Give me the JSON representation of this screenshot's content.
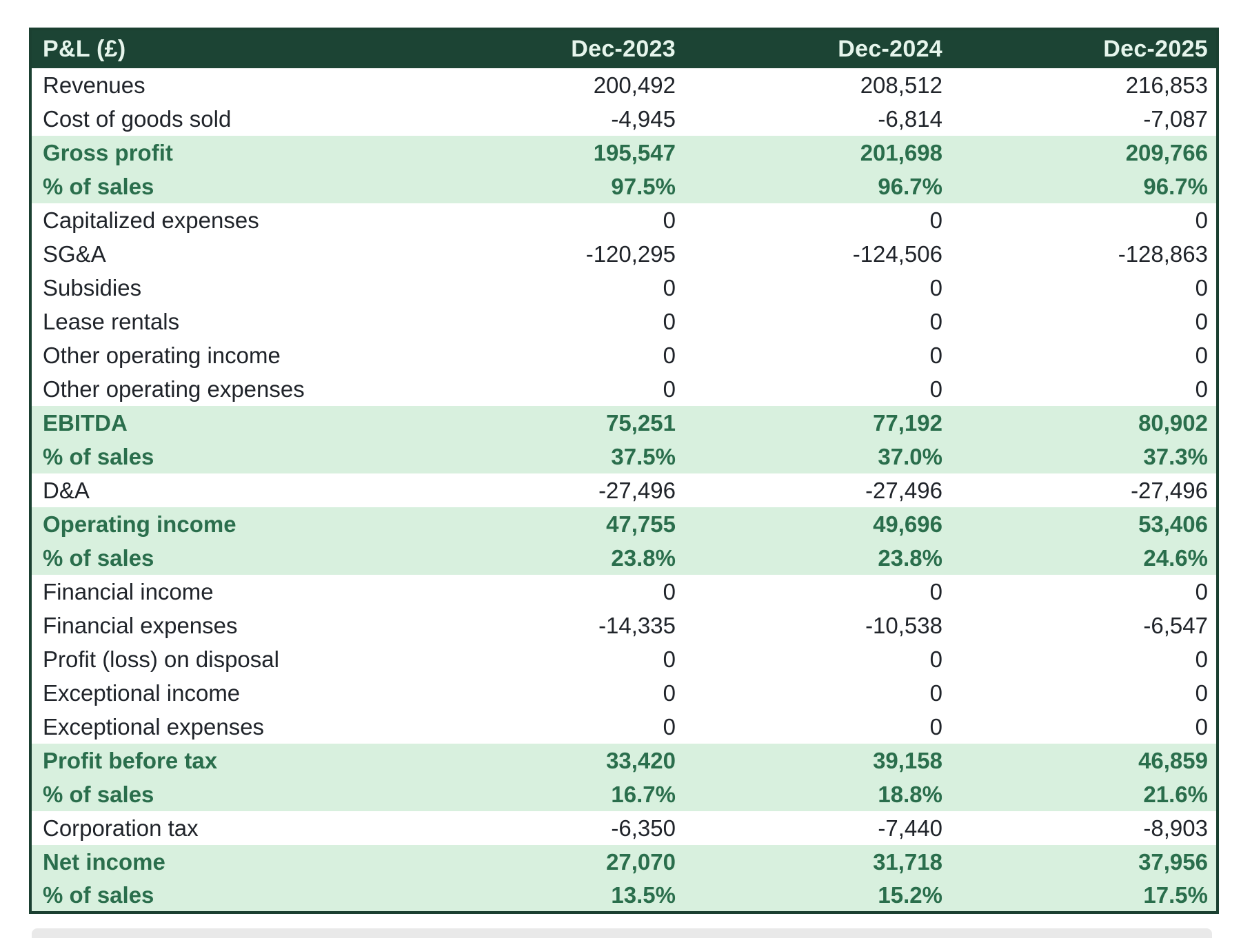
{
  "colors": {
    "page_bg": "#ffffff",
    "header_bg": "#1c4434",
    "header_text": "#e6f5ec",
    "band_bg": "#d8f0de",
    "band_text": "#2a6e4c",
    "body_text": "#20242a",
    "border": "#1b4031",
    "next_block": "#e9e9e9"
  },
  "table": {
    "header": {
      "title": "P&L (£)",
      "columns": [
        "Dec-2023",
        "Dec-2024",
        "Dec-2025"
      ]
    },
    "rows": [
      {
        "label": "Revenues",
        "highlight": false,
        "values": [
          "200,492",
          "208,512",
          "216,853"
        ]
      },
      {
        "label": "Cost of goods sold",
        "highlight": false,
        "values": [
          "-4,945",
          "-6,814",
          "-7,087"
        ]
      },
      {
        "label": "Gross profit",
        "highlight": true,
        "values": [
          "195,547",
          "201,698",
          "209,766"
        ]
      },
      {
        "label": "% of sales",
        "highlight": true,
        "values": [
          "97.5%",
          "96.7%",
          "96.7%"
        ]
      },
      {
        "label": "Capitalized expenses",
        "highlight": false,
        "values": [
          "0",
          "0",
          "0"
        ]
      },
      {
        "label": "SG&A",
        "highlight": false,
        "values": [
          "-120,295",
          "-124,506",
          "-128,863"
        ]
      },
      {
        "label": "Subsidies",
        "highlight": false,
        "values": [
          "0",
          "0",
          "0"
        ]
      },
      {
        "label": "Lease rentals",
        "highlight": false,
        "values": [
          "0",
          "0",
          "0"
        ]
      },
      {
        "label": "Other operating income",
        "highlight": false,
        "values": [
          "0",
          "0",
          "0"
        ]
      },
      {
        "label": "Other operating expenses",
        "highlight": false,
        "values": [
          "0",
          "0",
          "0"
        ]
      },
      {
        "label": "EBITDA",
        "highlight": true,
        "values": [
          "75,251",
          "77,192",
          "80,902"
        ]
      },
      {
        "label": "% of sales",
        "highlight": true,
        "values": [
          "37.5%",
          "37.0%",
          "37.3%"
        ]
      },
      {
        "label": "D&A",
        "highlight": false,
        "values": [
          "-27,496",
          "-27,496",
          "-27,496"
        ]
      },
      {
        "label": "Operating income",
        "highlight": true,
        "values": [
          "47,755",
          "49,696",
          "53,406"
        ]
      },
      {
        "label": "% of sales",
        "highlight": true,
        "values": [
          "23.8%",
          "23.8%",
          "24.6%"
        ]
      },
      {
        "label": "Financial income",
        "highlight": false,
        "values": [
          "0",
          "0",
          "0"
        ]
      },
      {
        "label": "Financial expenses",
        "highlight": false,
        "values": [
          "-14,335",
          "-10,538",
          "-6,547"
        ]
      },
      {
        "label": "Profit (loss) on disposal",
        "highlight": false,
        "values": [
          "0",
          "0",
          "0"
        ]
      },
      {
        "label": "Exceptional income",
        "highlight": false,
        "values": [
          "0",
          "0",
          "0"
        ]
      },
      {
        "label": "Exceptional expenses",
        "highlight": false,
        "values": [
          "0",
          "0",
          "0"
        ]
      },
      {
        "label": "Profit before tax",
        "highlight": true,
        "values": [
          "33,420",
          "39,158",
          "46,859"
        ]
      },
      {
        "label": "% of sales",
        "highlight": true,
        "values": [
          "16.7%",
          "18.8%",
          "21.6%"
        ]
      },
      {
        "label": "Corporation tax",
        "highlight": false,
        "values": [
          "-6,350",
          "-7,440",
          "-8,903"
        ]
      },
      {
        "label": "Net income",
        "highlight": true,
        "values": [
          "27,070",
          "31,718",
          "37,956"
        ]
      },
      {
        "label": "% of sales",
        "highlight": true,
        "values": [
          "13.5%",
          "15.2%",
          "17.5%"
        ]
      }
    ]
  },
  "chart_data": {
    "type": "table",
    "title": "P&L (£)",
    "columns": [
      "Dec-2023",
      "Dec-2024",
      "Dec-2025"
    ],
    "rows": [
      {
        "label": "Revenues",
        "values": [
          200492,
          208512,
          216853
        ]
      },
      {
        "label": "Cost of goods sold",
        "values": [
          -4945,
          -6814,
          -7087
        ]
      },
      {
        "label": "Gross profit",
        "values": [
          195547,
          201698,
          209766
        ]
      },
      {
        "label": "% of sales",
        "values": [
          "97.5%",
          "96.7%",
          "96.7%"
        ]
      },
      {
        "label": "Capitalized expenses",
        "values": [
          0,
          0,
          0
        ]
      },
      {
        "label": "SG&A",
        "values": [
          -120295,
          -124506,
          -128863
        ]
      },
      {
        "label": "Subsidies",
        "values": [
          0,
          0,
          0
        ]
      },
      {
        "label": "Lease rentals",
        "values": [
          0,
          0,
          0
        ]
      },
      {
        "label": "Other operating income",
        "values": [
          0,
          0,
          0
        ]
      },
      {
        "label": "Other operating expenses",
        "values": [
          0,
          0,
          0
        ]
      },
      {
        "label": "EBITDA",
        "values": [
          75251,
          77192,
          80902
        ]
      },
      {
        "label": "% of sales",
        "values": [
          "37.5%",
          "37.0%",
          "37.3%"
        ]
      },
      {
        "label": "D&A",
        "values": [
          -27496,
          -27496,
          -27496
        ]
      },
      {
        "label": "Operating income",
        "values": [
          47755,
          49696,
          53406
        ]
      },
      {
        "label": "% of sales",
        "values": [
          "23.8%",
          "23.8%",
          "24.6%"
        ]
      },
      {
        "label": "Financial income",
        "values": [
          0,
          0,
          0
        ]
      },
      {
        "label": "Financial expenses",
        "values": [
          -14335,
          -10538,
          -6547
        ]
      },
      {
        "label": "Profit (loss) on disposal",
        "values": [
          0,
          0,
          0
        ]
      },
      {
        "label": "Exceptional income",
        "values": [
          0,
          0,
          0
        ]
      },
      {
        "label": "Exceptional expenses",
        "values": [
          0,
          0,
          0
        ]
      },
      {
        "label": "Profit before tax",
        "values": [
          33420,
          39158,
          46859
        ]
      },
      {
        "label": "% of sales",
        "values": [
          "16.7%",
          "18.8%",
          "21.6%"
        ]
      },
      {
        "label": "Corporation tax",
        "values": [
          -6350,
          -7440,
          -8903
        ]
      },
      {
        "label": "Net income",
        "values": [
          27070,
          31718,
          37956
        ]
      },
      {
        "label": "% of sales",
        "values": [
          "13.5%",
          "15.2%",
          "17.5%"
        ]
      }
    ]
  }
}
